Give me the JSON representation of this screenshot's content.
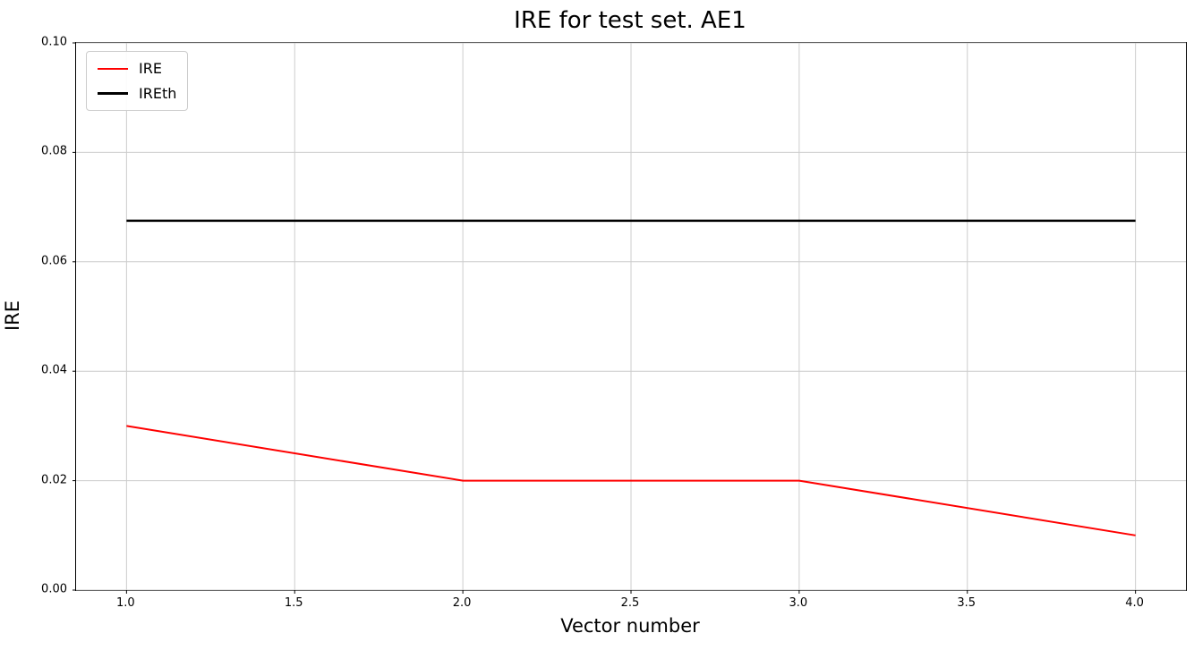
{
  "chart_data": {
    "type": "line",
    "title": "IRE for test set. AE1",
    "xlabel": "Vector number",
    "ylabel": "IRE",
    "x": [
      1,
      2,
      3,
      4
    ],
    "series": [
      {
        "name": "IRE",
        "color": "#ff0000",
        "width": 2,
        "values": [
          0.03,
          0.02,
          0.02,
          0.01
        ]
      },
      {
        "name": "IREth",
        "color": "#000000",
        "width": 2.5,
        "values": [
          0.0675,
          0.0675,
          0.0675,
          0.0675
        ]
      }
    ],
    "xlim": [
      0.85,
      4.15
    ],
    "ylim": [
      0.0,
      0.1
    ],
    "xticks": [
      1.0,
      1.5,
      2.0,
      2.5,
      3.0,
      3.5,
      4.0
    ],
    "xtick_labels": [
      "1.0",
      "1.5",
      "2.0",
      "2.5",
      "3.0",
      "3.5",
      "4.0"
    ],
    "yticks": [
      0.0,
      0.02,
      0.04,
      0.06,
      0.08,
      0.1
    ],
    "ytick_labels": [
      "0.00",
      "0.02",
      "0.04",
      "0.06",
      "0.08",
      "0.10"
    ],
    "grid": true,
    "grid_color": "#cccccc",
    "legend_position": "upper left",
    "legend_border_color": "#cccccc"
  }
}
